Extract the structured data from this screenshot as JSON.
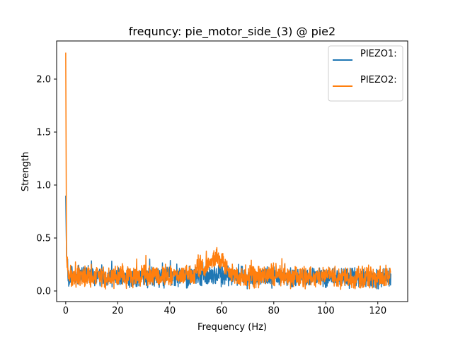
{
  "chart_data": {
    "type": "line",
    "title": "frequncy: pie_motor_side_(3) @ pie2",
    "xlabel": "Frequency (Hz)",
    "ylabel": "Strength",
    "xlim": [
      -3.5,
      131.5
    ],
    "ylim": [
      -0.1,
      2.36
    ],
    "xticks": [
      0,
      20,
      40,
      60,
      80,
      100,
      120
    ],
    "yticks": [
      0.0,
      0.5,
      1.0,
      1.5,
      2.0
    ],
    "xtick_labels": [
      "0",
      "20",
      "40",
      "60",
      "80",
      "100",
      "120"
    ],
    "ytick_labels": [
      "0.0",
      "0.5",
      "1.0",
      "1.5",
      "2.0"
    ],
    "grid": false,
    "legend_position": "top-right",
    "x_range": [
      0,
      125
    ],
    "series": [
      {
        "name": "PIEZO1:",
        "color": "#1f77b4",
        "envelope": [
          [
            0,
            0.9
          ],
          [
            0.3,
            0.35
          ],
          [
            1,
            0.12
          ],
          [
            2,
            0.14
          ],
          [
            4,
            0.13
          ],
          [
            6,
            0.16
          ],
          [
            8,
            0.16
          ],
          [
            10,
            0.14
          ],
          [
            15,
            0.13
          ],
          [
            20,
            0.13
          ],
          [
            25,
            0.13
          ],
          [
            30,
            0.14
          ],
          [
            35,
            0.13
          ],
          [
            40,
            0.13
          ],
          [
            45,
            0.13
          ],
          [
            50,
            0.14
          ],
          [
            55,
            0.14
          ],
          [
            60,
            0.15
          ],
          [
            65,
            0.14
          ],
          [
            70,
            0.13
          ],
          [
            80,
            0.13
          ],
          [
            90,
            0.13
          ],
          [
            100,
            0.13
          ],
          [
            110,
            0.12
          ],
          [
            120,
            0.12
          ],
          [
            125,
            0.12
          ]
        ],
        "noise_amplitude": 0.08
      },
      {
        "name": "PIEZO2:",
        "color": "#ff7f0e",
        "envelope": [
          [
            0,
            2.25
          ],
          [
            0.3,
            0.33
          ],
          [
            1,
            0.14
          ],
          [
            2,
            0.14
          ],
          [
            4,
            0.14
          ],
          [
            6,
            0.15
          ],
          [
            8,
            0.15
          ],
          [
            10,
            0.14
          ],
          [
            15,
            0.14
          ],
          [
            20,
            0.14
          ],
          [
            25,
            0.14
          ],
          [
            30,
            0.15
          ],
          [
            35,
            0.14
          ],
          [
            40,
            0.14
          ],
          [
            45,
            0.15
          ],
          [
            50,
            0.18
          ],
          [
            53,
            0.22
          ],
          [
            55,
            0.25
          ],
          [
            57,
            0.3
          ],
          [
            59,
            0.3
          ],
          [
            61,
            0.22
          ],
          [
            63,
            0.17
          ],
          [
            66,
            0.14
          ],
          [
            70,
            0.13
          ],
          [
            80,
            0.14
          ],
          [
            90,
            0.13
          ],
          [
            100,
            0.13
          ],
          [
            110,
            0.12
          ],
          [
            120,
            0.13
          ],
          [
            125,
            0.13
          ]
        ],
        "noise_amplitude": 0.09
      }
    ]
  }
}
